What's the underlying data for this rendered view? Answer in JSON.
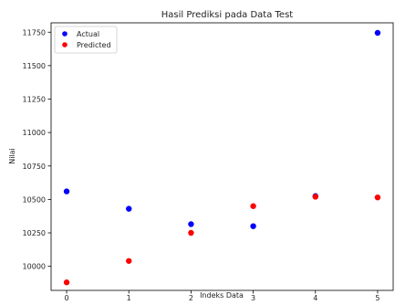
{
  "chart_data": {
    "type": "scatter",
    "title": "Hasil Prediksi pada Data Test",
    "xlabel": "Indeks Data",
    "ylabel": "Nilai",
    "xlim": [
      -0.25,
      5.25
    ],
    "ylim": [
      9820,
      11820
    ],
    "x_ticks": [
      0,
      1,
      2,
      3,
      4,
      5
    ],
    "y_ticks": [
      10000,
      10250,
      10500,
      10750,
      11000,
      11250,
      11500,
      11750
    ],
    "grid": false,
    "legend_position": "top-left",
    "series": [
      {
        "name": "Actual",
        "color": "#0000ff",
        "x": [
          0,
          1,
          2,
          3,
          4,
          5
        ],
        "y": [
          10560,
          10430,
          10315,
          10300,
          10525,
          11745
        ]
      },
      {
        "name": "Predicted",
        "color": "#ff0000",
        "x": [
          0,
          1,
          2,
          3,
          4,
          5
        ],
        "y": [
          9880,
          10040,
          10250,
          10450,
          10520,
          10515
        ]
      }
    ]
  }
}
